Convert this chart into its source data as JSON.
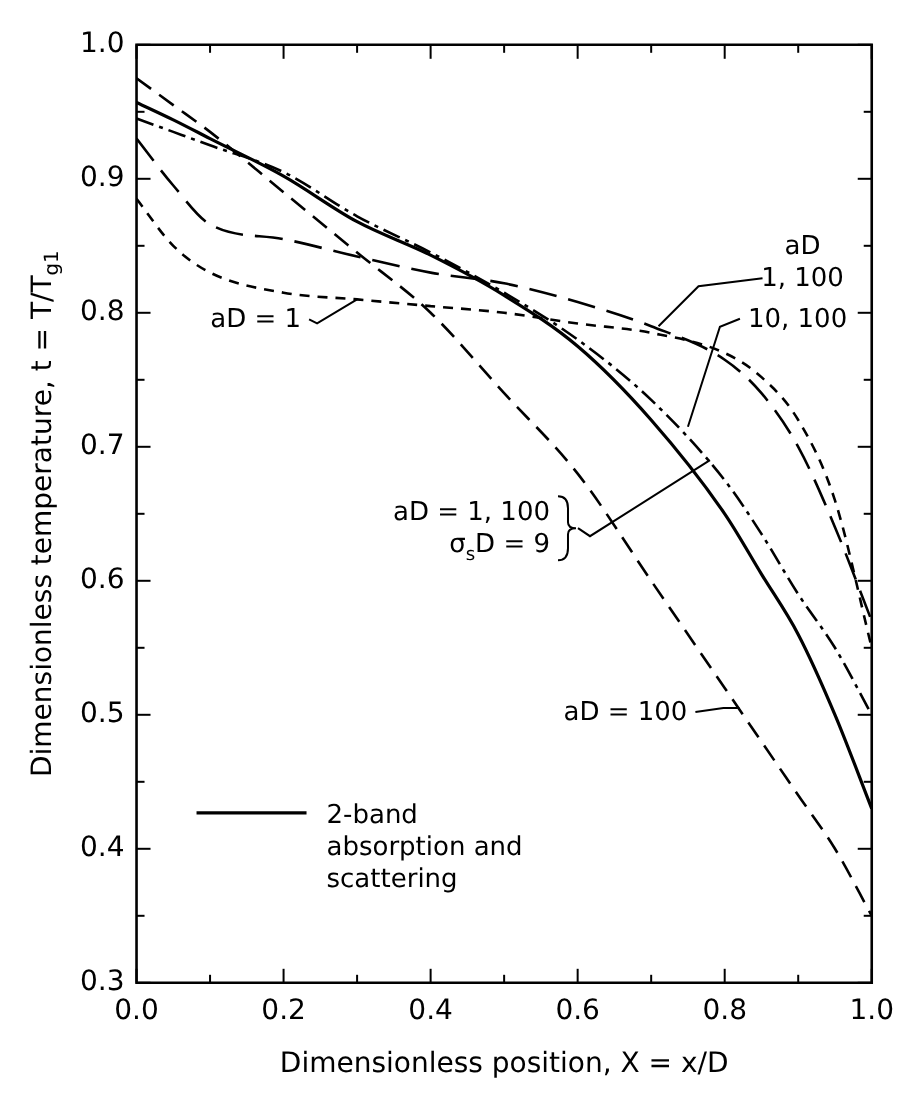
{
  "chart_data": {
    "type": "line",
    "xlabel": "Dimensionless position, X = x/D",
    "ylabel": "Dimensionless temperature, t = T/T$_{g1}$",
    "xlim": [
      0,
      1
    ],
    "ylim": [
      0.3,
      1.0
    ],
    "xticks": [
      {
        "value": 0,
        "label": "0.0"
      },
      {
        "value": 0.1,
        "label": null
      },
      0.2,
      {
        "value": 0.3,
        "label": null
      },
      0.4,
      {
        "value": 0.5,
        "label": null
      },
      0.6,
      {
        "value": 0.7,
        "label": null
      },
      0.8,
      {
        "value": 0.9,
        "label": null
      },
      {
        "value": 1,
        "label": "1.0"
      }
    ],
    "yticks": [
      0.3,
      {
        "value": 0.35,
        "label": null
      },
      0.4,
      {
        "value": 0.45,
        "label": null
      },
      0.5,
      {
        "value": 0.55,
        "label": null
      },
      0.6,
      {
        "value": 0.65,
        "label": null
      },
      0.7,
      {
        "value": 0.75,
        "label": null
      },
      0.8,
      {
        "value": 0.85,
        "label": null
      },
      0.9,
      {
        "value": 0.95,
        "label": null
      },
      {
        "value": 1,
        "label": "1.0"
      }
    ],
    "grid": false,
    "legend": "bottom left",
    "marker": "none",
    "x": [
      0,
      0.05,
      0.1,
      0.2,
      0.3,
      0.4,
      0.5,
      0.6,
      0.7,
      0.8,
      0.85,
      0.9,
      0.95,
      1.0
    ],
    "series": [
      {
        "name": "2-band absorption and scattering",
        "color": "#000000",
        "line_style": "solid",
        "values": [
          0.957,
          0.944,
          0.93,
          0.902,
          0.868,
          0.843,
          0.813,
          0.775,
          0.72,
          0.65,
          0.605,
          0.56,
          0.5,
          0.43
        ]
      },
      {
        "color": "#000000",
        "line_style": "dashed",
        "values": [
          0.945,
          0.935,
          0.925,
          0.905,
          0.872,
          0.845,
          0.815,
          0.78,
          0.735,
          0.675,
          0.635,
          0.59,
          0.55,
          0.5
        ]
      },
      {
        "color": "#000000",
        "line_style": "dashed",
        "values": [
          0.93,
          0.895,
          0.866,
          0.855,
          0.842,
          0.83,
          0.822,
          0.808,
          0.79,
          0.765,
          0.74,
          0.7,
          0.64,
          0.57
        ]
      },
      {
        "color": "#000000",
        "line_style": "dashed",
        "values": [
          0.885,
          0.85,
          0.83,
          0.815,
          0.81,
          0.805,
          0.8,
          0.792,
          0.785,
          0.77,
          0.752,
          0.72,
          0.66,
          0.55
        ]
      },
      {
        "color": "#000000",
        "line_style": "dashed",
        "values": [
          0.975,
          0.955,
          0.935,
          0.89,
          0.845,
          0.8,
          0.74,
          0.68,
          0.6,
          0.52,
          0.48,
          0.44,
          0.4,
          0.35
        ]
      }
    ],
    "annotations": [
      {
        "text": "aD = 1",
        "x": 0.3,
        "y": 0.81
      },
      {
        "text": "aD\n1, 100",
        "x": 0.71,
        "y": 0.79
      },
      {
        "text": "10, 100",
        "x": 0.75,
        "y": 0.715
      },
      {
        "text": "aD = 1, 100\nσ$_{s}$D = 9",
        "x": 0.78,
        "y": 0.69
      },
      {
        "text": "aD = 100",
        "x": 0.82,
        "y": 0.505
      }
    ]
  }
}
